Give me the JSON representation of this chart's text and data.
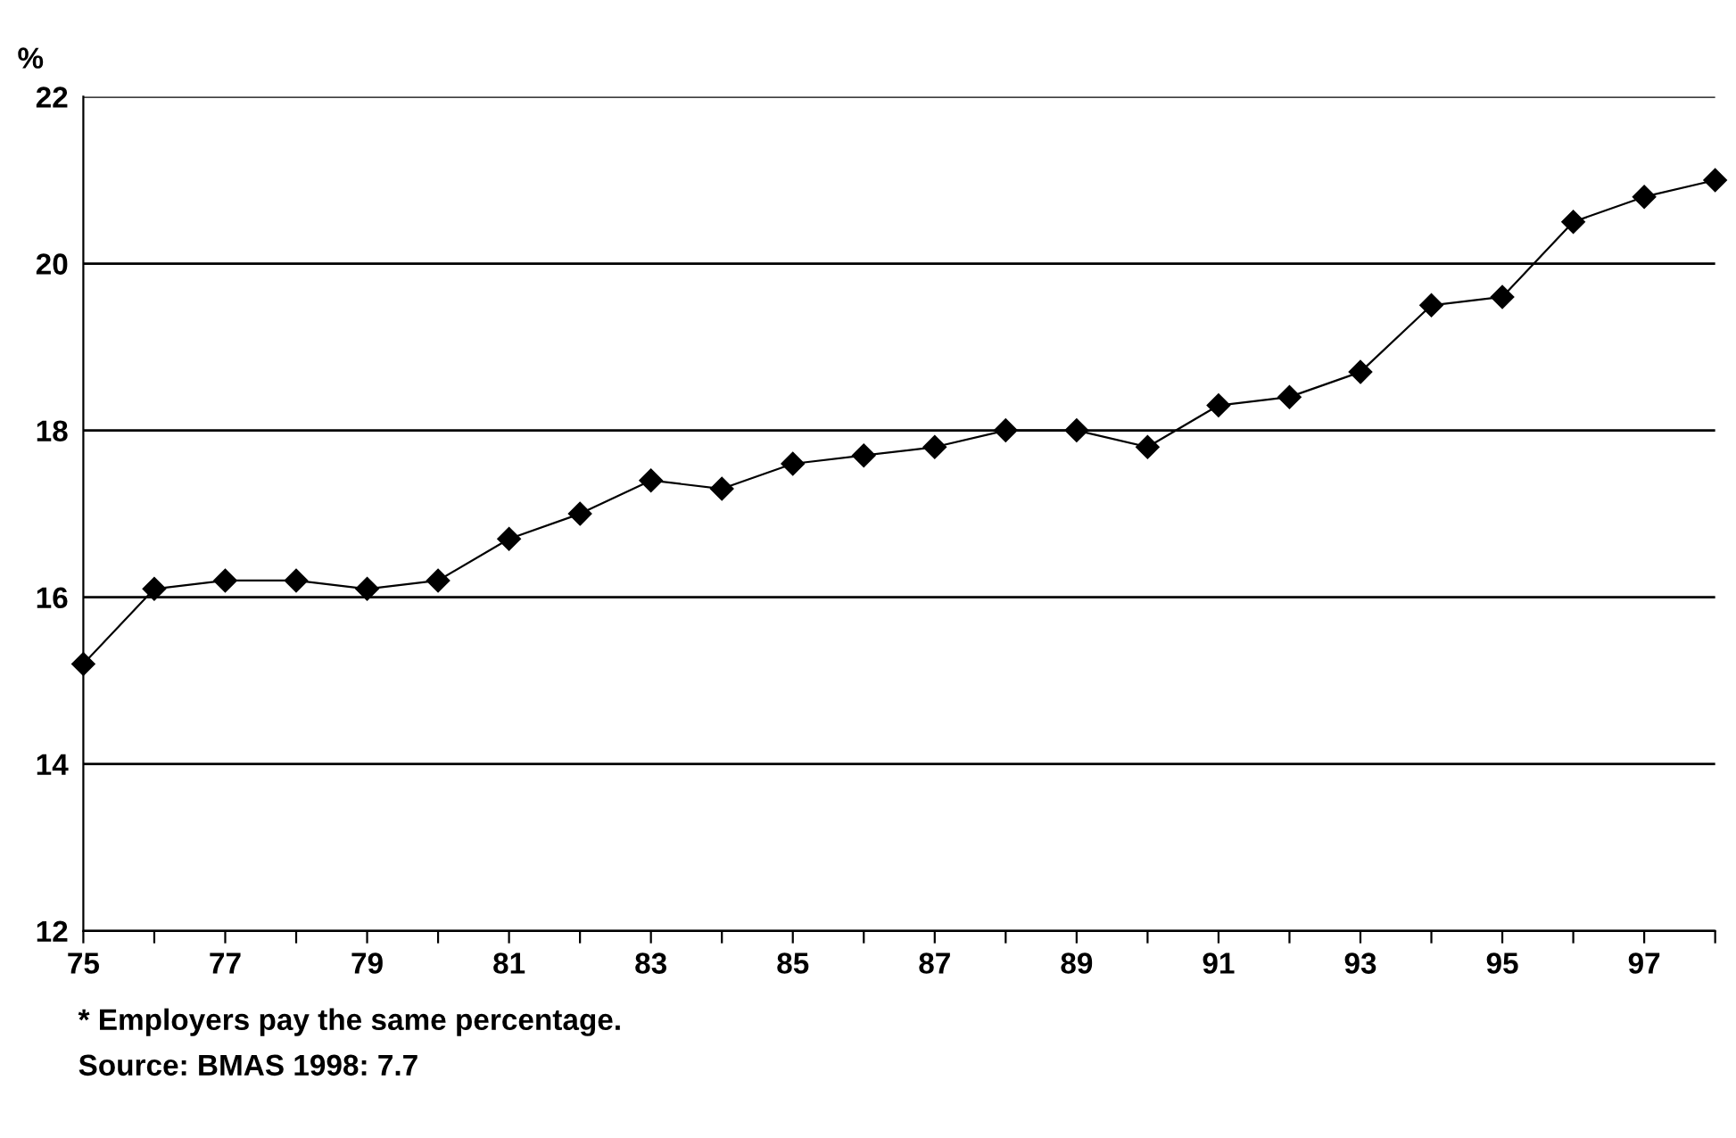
{
  "chart_data": {
    "type": "line",
    "ylabel": "%",
    "x": [
      75,
      76,
      77,
      78,
      79,
      80,
      81,
      82,
      83,
      84,
      85,
      86,
      87,
      88,
      89,
      90,
      91,
      92,
      93,
      94,
      95,
      96,
      97,
      98
    ],
    "series": [
      {
        "color": "#000000",
        "values": [
          15.2,
          16.1,
          16.2,
          16.2,
          16.1,
          16.2,
          16.7,
          17.0,
          17.4,
          17.3,
          17.6,
          17.7,
          17.8,
          18.0,
          18.0,
          17.8,
          18.3,
          18.4,
          18.7,
          19.5,
          19.6,
          20.5,
          20.8,
          21.0
        ]
      }
    ],
    "xlim": [
      75,
      98
    ],
    "xticks": [
      75,
      {
        "value": 76,
        "label": null
      },
      77,
      {
        "value": 78,
        "label": null
      },
      79,
      {
        "value": 80,
        "label": null
      },
      81,
      {
        "value": 82,
        "label": null
      },
      83,
      {
        "value": 84,
        "label": null
      },
      85,
      {
        "value": 86,
        "label": null
      },
      87,
      {
        "value": 88,
        "label": null
      },
      89,
      {
        "value": 90,
        "label": null
      },
      91,
      {
        "value": 92,
        "label": null
      },
      93,
      {
        "value": 94,
        "label": null
      },
      95,
      {
        "value": 96,
        "label": null
      },
      97,
      {
        "value": 98,
        "label": null
      }
    ],
    "ylim": [
      12,
      22
    ],
    "yticks": [
      12,
      14,
      16,
      18,
      20,
      22
    ],
    "grid": "y",
    "marker": "diamond",
    "line_style": "solid",
    "legend": false,
    "annotations": [
      "* Employers pay the same percentage.",
      "Source: BMAS 1998: 7.7"
    ]
  }
}
